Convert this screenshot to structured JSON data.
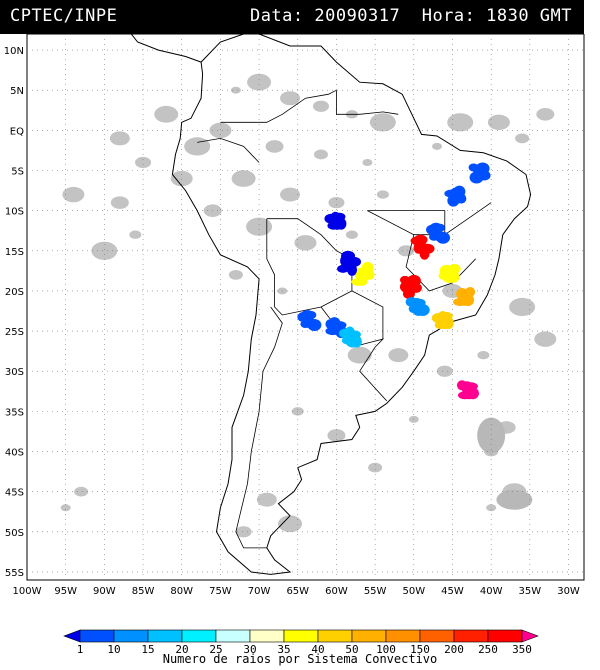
{
  "header": {
    "source": "CPTEC/INPE",
    "datetime": "Data: 20090317  Hora: 1830 GMT"
  },
  "map": {
    "lat_labels": [
      "10N",
      "5N",
      "EQ",
      "5S",
      "10S",
      "15S",
      "20S",
      "25S",
      "30S",
      "35S",
      "40S",
      "45S",
      "50S",
      "55S"
    ],
    "lon_labels": [
      "100W",
      "95W",
      "90W",
      "85W",
      "80W",
      "75W",
      "70W",
      "65W",
      "60W",
      "55W",
      "50W",
      "45W",
      "40W",
      "35W",
      "30W"
    ],
    "lat_range": [
      -56,
      12
    ],
    "lon_range": [
      -100,
      -28
    ],
    "grid": "dotted",
    "land_fill": "#ffffff",
    "coast_color": "#000000",
    "cloud_color": "#b8b8b8"
  },
  "colorbar": {
    "ticks": [
      "1",
      "10",
      "15",
      "20",
      "25",
      "30",
      "35",
      "40",
      "50",
      "100",
      "150",
      "200",
      "250",
      "350"
    ],
    "colors": [
      "#0000e8",
      "#0050ff",
      "#0090ff",
      "#00c0ff",
      "#00f0ff",
      "#c8ffff",
      "#ffffc8",
      "#ffff00",
      "#ffd000",
      "#ffb000",
      "#ff9000",
      "#ff6000",
      "#ff2000",
      "#ff0000",
      "#ff0090"
    ],
    "label": "Numero de raios por Sistema Convectivo"
  },
  "systems": [
    {
      "lon": -41.5,
      "lat": -5.5,
      "color": "#0050ff"
    },
    {
      "lon": -44.5,
      "lat": -8.5,
      "color": "#0050ff"
    },
    {
      "lon": -49.0,
      "lat": -14.5,
      "color": "#ff0000"
    },
    {
      "lon": -50.5,
      "lat": -19.5,
      "color": "#ff0000"
    },
    {
      "lon": -56.5,
      "lat": -18.0,
      "color": "#ffff00"
    },
    {
      "lon": -58.5,
      "lat": -16.5,
      "color": "#0000e8"
    },
    {
      "lon": -45.5,
      "lat": -17.5,
      "color": "#ffff00"
    },
    {
      "lon": -43.5,
      "lat": -20.5,
      "color": "#ffb000"
    },
    {
      "lon": -46.0,
      "lat": -23.5,
      "color": "#ffd000"
    },
    {
      "lon": -63.5,
      "lat": -23.5,
      "color": "#0050ff"
    },
    {
      "lon": -60.0,
      "lat": -24.5,
      "color": "#0050ff"
    },
    {
      "lon": -58.0,
      "lat": -25.8,
      "color": "#00c0ff"
    },
    {
      "lon": -49.5,
      "lat": -22.0,
      "color": "#0090ff"
    },
    {
      "lon": -43.0,
      "lat": -32.5,
      "color": "#ff0090"
    },
    {
      "lon": -60.0,
      "lat": -11.5,
      "color": "#0000e8"
    },
    {
      "lon": -47.0,
      "lat": -13.0,
      "color": "#0050ff"
    }
  ]
}
